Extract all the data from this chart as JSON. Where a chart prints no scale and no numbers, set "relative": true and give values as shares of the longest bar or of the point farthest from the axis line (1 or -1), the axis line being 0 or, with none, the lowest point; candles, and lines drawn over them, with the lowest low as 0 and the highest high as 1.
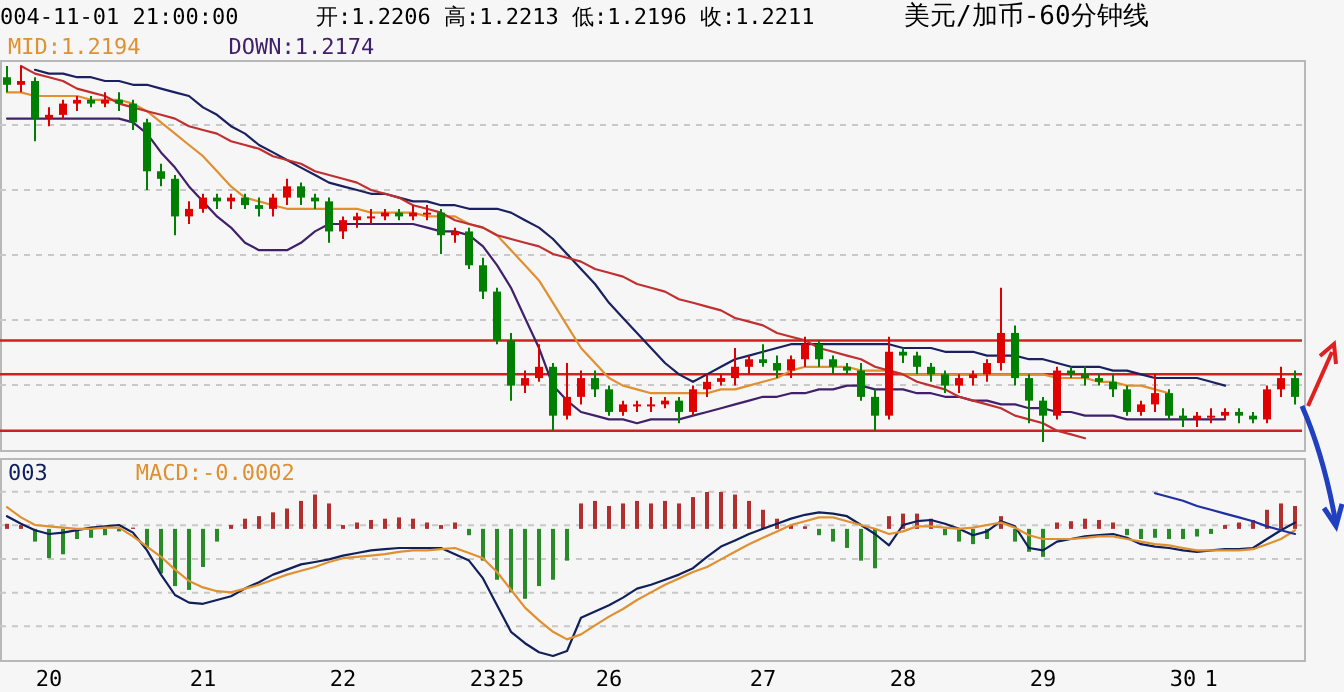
{
  "chart_data": [
    {
      "type": "candlestick",
      "title": "美元/加币-60分钟线",
      "subtitle": "开:1.2206 高:1.2213 低:1.2196 收:1.2211",
      "annotations": [
        "004-11-01 21:00:00"
      ],
      "relative": true,
      "tick_labels": false,
      "grid": "y",
      "legend": "top left",
      "categories": [
        null,
        null,
        null,
        null,
        null,
        null,
        null,
        null,
        null,
        null,
        null,
        null,
        null,
        null,
        null,
        null,
        null,
        null,
        null,
        null,
        null,
        null,
        null,
        null,
        null,
        null,
        null,
        null,
        null,
        null,
        null,
        null,
        null,
        null,
        null,
        null,
        null,
        null,
        null,
        null,
        null,
        null,
        null,
        null,
        null,
        null,
        null,
        null,
        null,
        null,
        null,
        null,
        null,
        null,
        null,
        null,
        null,
        null,
        null,
        null,
        null,
        null,
        null,
        null,
        null,
        null,
        null,
        null,
        null,
        null,
        null,
        null,
        null,
        null,
        null,
        null,
        null,
        null,
        null,
        null,
        null,
        null,
        null,
        null,
        null,
        null,
        null,
        null,
        null,
        null,
        null,
        null,
        null
      ],
      "ohlc": [
        [
          0.97,
          1.0,
          0.93,
          0.95
        ],
        [
          0.95,
          1.0,
          0.93,
          0.96
        ],
        [
          0.96,
          0.97,
          0.8,
          0.86
        ],
        [
          0.86,
          0.89,
          0.84,
          0.87
        ],
        [
          0.87,
          0.91,
          0.86,
          0.9
        ],
        [
          0.9,
          0.92,
          0.88,
          0.91
        ],
        [
          0.91,
          0.92,
          0.89,
          0.9
        ],
        [
          0.9,
          0.93,
          0.89,
          0.91
        ],
        [
          0.91,
          0.93,
          0.88,
          0.9
        ],
        [
          0.9,
          0.91,
          0.83,
          0.85
        ],
        [
          0.85,
          0.86,
          0.67,
          0.72
        ],
        [
          0.72,
          0.74,
          0.68,
          0.7
        ],
        [
          0.7,
          0.71,
          0.55,
          0.6
        ],
        [
          0.6,
          0.64,
          0.58,
          0.62
        ],
        [
          0.62,
          0.66,
          0.61,
          0.65
        ],
        [
          0.65,
          0.66,
          0.62,
          0.64
        ],
        [
          0.64,
          0.66,
          0.62,
          0.65
        ],
        [
          0.65,
          0.66,
          0.62,
          0.63
        ],
        [
          0.63,
          0.65,
          0.6,
          0.62
        ],
        [
          0.62,
          0.66,
          0.6,
          0.65
        ],
        [
          0.65,
          0.7,
          0.63,
          0.68
        ],
        [
          0.68,
          0.69,
          0.63,
          0.65
        ],
        [
          0.65,
          0.66,
          0.62,
          0.64
        ],
        [
          0.64,
          0.65,
          0.53,
          0.56
        ],
        [
          0.56,
          0.6,
          0.54,
          0.59
        ],
        [
          0.59,
          0.61,
          0.57,
          0.6
        ],
        [
          0.6,
          0.62,
          0.58,
          0.6
        ],
        [
          0.6,
          0.62,
          0.59,
          0.61
        ],
        [
          0.61,
          0.62,
          0.59,
          0.6
        ],
        [
          0.6,
          0.63,
          0.59,
          0.61
        ],
        [
          0.61,
          0.63,
          0.59,
          0.61
        ],
        [
          0.61,
          0.62,
          0.5,
          0.55
        ],
        [
          0.55,
          0.57,
          0.53,
          0.56
        ],
        [
          0.56,
          0.57,
          0.46,
          0.47
        ],
        [
          0.47,
          0.49,
          0.38,
          0.4
        ],
        [
          0.4,
          0.41,
          0.26,
          0.27
        ],
        [
          0.27,
          0.29,
          0.11,
          0.15
        ],
        [
          0.15,
          0.19,
          0.13,
          0.17
        ],
        [
          0.17,
          0.26,
          0.16,
          0.2
        ],
        [
          0.2,
          0.21,
          0.03,
          0.07
        ],
        [
          0.07,
          0.21,
          0.06,
          0.12
        ],
        [
          0.12,
          0.19,
          0.1,
          0.17
        ],
        [
          0.17,
          0.19,
          0.12,
          0.14
        ],
        [
          0.14,
          0.15,
          0.07,
          0.08
        ],
        [
          0.08,
          0.11,
          0.07,
          0.1
        ],
        [
          0.1,
          0.11,
          0.08,
          0.1
        ],
        [
          0.1,
          0.12,
          0.08,
          0.1
        ],
        [
          0.1,
          0.12,
          0.09,
          0.11
        ],
        [
          0.11,
          0.12,
          0.05,
          0.08
        ],
        [
          0.08,
          0.15,
          0.07,
          0.14
        ],
        [
          0.14,
          0.18,
          0.12,
          0.16
        ],
        [
          0.16,
          0.18,
          0.15,
          0.17
        ],
        [
          0.17,
          0.25,
          0.15,
          0.2
        ],
        [
          0.2,
          0.23,
          0.18,
          0.22
        ],
        [
          0.22,
          0.26,
          0.2,
          0.21
        ],
        [
          0.21,
          0.23,
          0.17,
          0.19
        ],
        [
          0.19,
          0.23,
          0.17,
          0.22
        ],
        [
          0.22,
          0.28,
          0.2,
          0.26
        ],
        [
          0.26,
          0.27,
          0.2,
          0.22
        ],
        [
          0.22,
          0.23,
          0.18,
          0.2
        ],
        [
          0.2,
          0.21,
          0.18,
          0.19
        ],
        [
          0.19,
          0.21,
          0.11,
          0.12
        ],
        [
          0.12,
          0.14,
          0.03,
          0.07
        ],
        [
          0.07,
          0.28,
          0.06,
          0.24
        ],
        [
          0.24,
          0.25,
          0.21,
          0.23
        ],
        [
          0.23,
          0.24,
          0.18,
          0.2
        ],
        [
          0.2,
          0.21,
          0.16,
          0.18
        ],
        [
          0.18,
          0.19,
          0.13,
          0.15
        ],
        [
          0.15,
          0.18,
          0.13,
          0.17
        ],
        [
          0.17,
          0.19,
          0.15,
          0.18
        ],
        [
          0.18,
          0.22,
          0.16,
          0.21
        ],
        [
          0.21,
          0.41,
          0.19,
          0.29
        ],
        [
          0.29,
          0.31,
          0.15,
          0.17
        ],
        [
          0.17,
          0.18,
          0.05,
          0.11
        ],
        [
          0.11,
          0.12,
          0.0,
          0.07
        ],
        [
          0.07,
          0.2,
          0.06,
          0.19
        ],
        [
          0.19,
          0.2,
          0.17,
          0.18
        ],
        [
          0.18,
          0.2,
          0.15,
          0.17
        ],
        [
          0.17,
          0.18,
          0.15,
          0.16
        ],
        [
          0.16,
          0.18,
          0.12,
          0.14
        ],
        [
          0.14,
          0.15,
          0.07,
          0.08
        ],
        [
          0.08,
          0.11,
          0.07,
          0.1
        ],
        [
          0.1,
          0.18,
          0.08,
          0.13
        ],
        [
          0.13,
          0.14,
          0.06,
          0.07
        ],
        [
          0.07,
          0.09,
          0.04,
          0.06
        ],
        [
          0.06,
          0.08,
          0.04,
          0.07
        ],
        [
          0.07,
          0.09,
          0.05,
          0.07
        ],
        [
          0.07,
          0.09,
          0.06,
          0.08
        ],
        [
          0.08,
          0.09,
          0.05,
          0.07
        ],
        [
          0.07,
          0.08,
          0.05,
          0.06
        ],
        [
          0.06,
          0.15,
          0.05,
          0.14
        ],
        [
          0.14,
          0.2,
          0.12,
          0.17
        ],
        [
          0.17,
          0.19,
          0.1,
          0.12
        ]
      ],
      "colors": [
        "#008000",
        "#e00000",
        "#008000",
        "#e00000",
        "#e00000",
        "#e00000",
        "#008000",
        "#e00000",
        "#008000",
        "#008000",
        "#008000",
        "#008000",
        "#008000",
        "#e00000",
        "#e00000",
        "#008000",
        "#e00000",
        "#008000",
        "#008000",
        "#e00000",
        "#e00000",
        "#008000",
        "#008000",
        "#008000",
        "#e00000",
        "#e00000",
        "#e00000",
        "#e00000",
        "#008000",
        "#e00000",
        "#e00000",
        "#008000",
        "#e00000",
        "#008000",
        "#008000",
        "#008000",
        "#008000",
        "#e00000",
        "#e00000",
        "#008000",
        "#e00000",
        "#e00000",
        "#008000",
        "#008000",
        "#e00000",
        "#e00000",
        "#e00000",
        "#e00000",
        "#008000",
        "#e00000",
        "#e00000",
        "#e00000",
        "#e00000",
        "#e00000",
        "#008000",
        "#008000",
        "#e00000",
        "#e00000",
        "#008000",
        "#008000",
        "#008000",
        "#008000",
        "#008000",
        "#e00000",
        "#008000",
        "#008000",
        "#008000",
        "#008000",
        "#e00000",
        "#e00000",
        "#e00000",
        "#e00000",
        "#008000",
        "#008000",
        "#008000",
        "#e00000",
        "#008000",
        "#008000",
        "#008000",
        "#008000",
        "#008000",
        "#e00000",
        "#e00000",
        "#008000",
        "#008000",
        "#e00000",
        "#e00000",
        "#e00000",
        "#008000",
        "#008000",
        "#e00000",
        "#e00000",
        "#008000"
      ],
      "series": [
        {
          "type": "line",
          "color": "#1a2060",
          "values": [
            null,
            null,
            0.99,
            0.98,
            0.98,
            0.97,
            0.97,
            0.96,
            0.96,
            0.95,
            0.95,
            0.94,
            0.93,
            0.92,
            0.89,
            0.87,
            0.84,
            0.82,
            0.79,
            0.77,
            0.75,
            0.73,
            0.71,
            0.69,
            0.68,
            0.67,
            0.66,
            0.66,
            0.65,
            0.64,
            0.64,
            0.63,
            0.63,
            0.62,
            0.62,
            0.62,
            0.61,
            0.59,
            0.57,
            0.54,
            0.5,
            0.46,
            0.42,
            0.37,
            0.33,
            0.29,
            0.25,
            0.21,
            0.18,
            0.16,
            0.18,
            0.2,
            0.22,
            0.23,
            0.24,
            0.25,
            0.26,
            0.26,
            0.26,
            0.26,
            0.26,
            0.26,
            0.26,
            0.26,
            0.25,
            0.25,
            0.25,
            0.24,
            0.24,
            0.24,
            0.23,
            0.23,
            0.23,
            0.22,
            0.22,
            0.21,
            0.2,
            0.2,
            0.2,
            0.19,
            0.19,
            0.18,
            0.17,
            0.17,
            0.17,
            0.17,
            0.16,
            0.15,
            null,
            null,
            null,
            null,
            null
          ]
        },
        {
          "type": "line",
          "name": "MID:1.2194",
          "color": "#e09030",
          "values": [
            0.93,
            0.93,
            0.92,
            0.92,
            0.92,
            0.92,
            0.91,
            0.91,
            0.91,
            0.9,
            0.88,
            0.85,
            0.82,
            0.79,
            0.76,
            0.72,
            0.68,
            0.65,
            0.64,
            0.63,
            0.62,
            0.62,
            0.62,
            0.62,
            0.62,
            0.62,
            0.61,
            0.61,
            0.61,
            0.61,
            0.6,
            0.6,
            0.6,
            0.58,
            0.57,
            0.55,
            0.51,
            0.47,
            0.43,
            0.37,
            0.31,
            0.25,
            0.21,
            0.17,
            0.15,
            0.14,
            0.13,
            0.13,
            0.13,
            0.13,
            0.13,
            0.14,
            0.14,
            0.15,
            0.16,
            0.17,
            0.19,
            0.2,
            0.2,
            0.2,
            0.2,
            0.19,
            0.19,
            0.19,
            0.18,
            0.18,
            0.18,
            0.18,
            0.18,
            0.18,
            0.18,
            0.18,
            0.18,
            0.18,
            0.18,
            0.17,
            0.17,
            0.17,
            0.16,
            0.16,
            0.15,
            0.15,
            0.14,
            0.13,
            null,
            null,
            null,
            null,
            null,
            null,
            null,
            null,
            null
          ]
        },
        {
          "type": "line",
          "name": "DOWN:1.2174",
          "color": "#40206a",
          "values": [
            0.86,
            0.86,
            0.86,
            0.86,
            0.86,
            0.86,
            0.86,
            0.86,
            0.86,
            0.85,
            0.82,
            0.77,
            0.73,
            0.68,
            0.64,
            0.6,
            0.57,
            0.53,
            0.51,
            0.51,
            0.51,
            0.53,
            0.56,
            0.58,
            0.58,
            0.58,
            0.58,
            0.58,
            0.58,
            0.58,
            0.57,
            0.56,
            0.56,
            0.55,
            0.52,
            0.47,
            0.41,
            0.33,
            0.25,
            0.15,
            0.11,
            0.08,
            0.07,
            0.06,
            0.06,
            0.05,
            0.06,
            0.06,
            0.06,
            0.07,
            0.08,
            0.09,
            0.1,
            0.11,
            0.12,
            0.12,
            0.13,
            0.13,
            0.14,
            0.14,
            0.15,
            0.15,
            0.14,
            0.14,
            0.14,
            0.13,
            0.13,
            0.12,
            0.12,
            0.11,
            0.11,
            0.1,
            0.1,
            0.09,
            0.09,
            0.08,
            0.08,
            0.07,
            0.07,
            0.07,
            0.06,
            0.06,
            0.06,
            0.06,
            0.06,
            0.06,
            0.06,
            0.06,
            null,
            null,
            null,
            null,
            null
          ]
        },
        {
          "type": "line",
          "color": "#c03030",
          "values": [
            null,
            1.0,
            0.98,
            0.97,
            0.96,
            0.94,
            0.93,
            0.92,
            0.9,
            0.89,
            0.88,
            0.87,
            0.86,
            0.84,
            0.83,
            0.82,
            0.8,
            0.79,
            0.78,
            0.76,
            0.75,
            0.74,
            0.72,
            0.71,
            0.7,
            0.69,
            0.67,
            0.66,
            0.65,
            0.63,
            0.62,
            0.61,
            0.59,
            0.58,
            0.57,
            0.55,
            0.54,
            0.53,
            0.52,
            0.5,
            0.49,
            0.48,
            0.46,
            0.45,
            0.44,
            0.42,
            0.41,
            0.4,
            0.38,
            0.37,
            0.36,
            0.35,
            0.33,
            0.32,
            0.31,
            0.29,
            0.28,
            0.27,
            0.25,
            0.24,
            0.23,
            0.22,
            0.2,
            0.19,
            0.18,
            0.16,
            0.15,
            0.14,
            0.12,
            0.11,
            0.1,
            0.09,
            0.07,
            0.06,
            0.05,
            0.03,
            0.02,
            0.01,
            null,
            null,
            null,
            null,
            null,
            null,
            null,
            null,
            null,
            null,
            null,
            null,
            null,
            null,
            null
          ]
        }
      ],
      "ref_lines": [
        {
          "axis": "y",
          "value": 0.27,
          "color": "#d02020"
        },
        {
          "axis": "y",
          "value": 0.18,
          "color": "#d02020"
        },
        {
          "axis": "y",
          "value": 0.03,
          "color": "#d02020"
        }
      ]
    },
    {
      "type": "bar",
      "relative": true,
      "tick_labels": "x",
      "grid": "y",
      "legend": "top left",
      "categories": [
        null,
        null,
        null,
        "20",
        null,
        null,
        null,
        null,
        null,
        null,
        null,
        null,
        null,
        null,
        "21",
        null,
        null,
        null,
        null,
        null,
        null,
        null,
        null,
        null,
        "22",
        null,
        null,
        null,
        null,
        null,
        null,
        null,
        null,
        null,
        "23",
        null,
        "25",
        null,
        null,
        null,
        null,
        null,
        null,
        "26",
        null,
        null,
        null,
        null,
        null,
        null,
        null,
        null,
        null,
        null,
        "27",
        null,
        null,
        null,
        null,
        null,
        null,
        null,
        null,
        null,
        "28",
        null,
        null,
        null,
        null,
        null,
        null,
        null,
        null,
        null,
        "29",
        null,
        null,
        null,
        null,
        null,
        null,
        null,
        null,
        null,
        "30",
        null,
        "1",
        null,
        null,
        null,
        null,
        null,
        null
      ],
      "series": [
        {
          "type": "bar",
          "color": "#b03030",
          "values": [
            0.04,
            0.03,
            null,
            null,
            null,
            null,
            null,
            null,
            null,
            0.01,
            null,
            null,
            null,
            null,
            null,
            null,
            0.03,
            0.08,
            0.1,
            0.13,
            0.16,
            0.22,
            0.27,
            0.2,
            0.03,
            0.05,
            0.07,
            0.08,
            0.09,
            0.08,
            0.05,
            0.03,
            0.05,
            null,
            null,
            null,
            null,
            null,
            null,
            null,
            null,
            0.2,
            0.22,
            0.18,
            0.2,
            0.22,
            0.2,
            0.22,
            0.2,
            0.25,
            0.29,
            0.29,
            0.27,
            0.22,
            0.15,
            0.08,
            0.03,
            0.02,
            null,
            null,
            null,
            null,
            null,
            0.1,
            0.12,
            0.12,
            0.08,
            null,
            null,
            null,
            null,
            0.1,
            null,
            null,
            null,
            0.05,
            0.06,
            0.08,
            0.07,
            0.05,
            null,
            null,
            null,
            null,
            null,
            null,
            null,
            0.03,
            0.05,
            0.07,
            0.15,
            0.2,
            0.18
          ]
        },
        {
          "type": "bar",
          "color": "#2a8a2a",
          "values": [
            null,
            null,
            -0.1,
            -0.23,
            -0.2,
            -0.08,
            -0.07,
            -0.05,
            -0.02,
            null,
            -0.15,
            -0.35,
            -0.45,
            -0.48,
            -0.3,
            -0.1,
            null,
            null,
            null,
            null,
            null,
            null,
            null,
            null,
            null,
            null,
            null,
            null,
            null,
            null,
            null,
            null,
            null,
            -0.05,
            -0.25,
            -0.4,
            -0.5,
            -0.55,
            -0.45,
            -0.4,
            -0.25,
            null,
            null,
            null,
            null,
            null,
            null,
            null,
            null,
            null,
            null,
            null,
            null,
            null,
            null,
            null,
            null,
            null,
            -0.05,
            -0.1,
            -0.15,
            -0.25,
            -0.31,
            null,
            null,
            null,
            null,
            -0.05,
            -0.1,
            -0.12,
            -0.08,
            null,
            -0.1,
            -0.18,
            -0.22,
            null,
            null,
            null,
            null,
            null,
            -0.05,
            -0.08,
            -0.07,
            -0.08,
            -0.08,
            -0.06,
            -0.04,
            null,
            null,
            null,
            null,
            null,
            null
          ]
        },
        {
          "type": "line",
          "name": "003",
          "color": "#10205a",
          "values": [
            0.1,
            0.04,
            -0.01,
            -0.04,
            -0.03,
            -0.01,
            0.01,
            0.02,
            0.03,
            -0.03,
            -0.17,
            -0.36,
            -0.52,
            -0.58,
            -0.59,
            -0.56,
            -0.53,
            -0.47,
            -0.42,
            -0.36,
            -0.32,
            -0.28,
            -0.26,
            -0.24,
            -0.21,
            -0.19,
            -0.17,
            -0.16,
            -0.15,
            -0.15,
            -0.15,
            -0.15,
            -0.2,
            -0.25,
            -0.39,
            -0.6,
            -0.81,
            -0.9,
            -0.97,
            -1.0,
            -0.96,
            -0.7,
            -0.65,
            -0.6,
            -0.54,
            -0.47,
            -0.44,
            -0.4,
            -0.36,
            -0.31,
            -0.22,
            -0.14,
            -0.09,
            -0.04,
            0,
            0.04,
            0.08,
            0.11,
            0.13,
            0.12,
            0.1,
            0.03,
            -0.04,
            -0.13,
            0.03,
            0.06,
            0.07,
            0.04,
            0,
            -0.05,
            -0.02,
            0.06,
            0.02,
            -0.15,
            -0.17,
            -0.1,
            -0.08,
            -0.06,
            -0.05,
            -0.04,
            -0.07,
            -0.12,
            -0.14,
            -0.15,
            -0.17,
            -0.18,
            -0.17,
            -0.16,
            -0.16,
            -0.15,
            -0.08,
            -0.01,
            0.05
          ]
        },
        {
          "type": "line",
          "name": "MACD:-0.0002",
          "color": "#e09030",
          "values": [
            0.17,
            0.09,
            0.03,
            0.02,
            0.01,
            0,
            0,
            0.01,
            0.01,
            -0.06,
            -0.14,
            -0.22,
            -0.32,
            -0.41,
            -0.46,
            -0.49,
            -0.5,
            -0.47,
            -0.44,
            -0.4,
            -0.36,
            -0.33,
            -0.3,
            -0.26,
            -0.23,
            -0.22,
            -0.21,
            -0.2,
            -0.18,
            -0.17,
            -0.17,
            -0.16,
            -0.15,
            -0.19,
            -0.23,
            -0.34,
            -0.48,
            -0.62,
            -0.72,
            -0.81,
            -0.87,
            -0.83,
            -0.76,
            -0.69,
            -0.63,
            -0.56,
            -0.5,
            -0.44,
            -0.39,
            -0.34,
            -0.3,
            -0.24,
            -0.18,
            -0.12,
            -0.07,
            -0.02,
            0.03,
            0.06,
            0.09,
            0.09,
            0.06,
            0.03,
            0,
            -0.04,
            -0.02,
            0.02,
            0.02,
            0.01,
            0,
            0.01,
            0.03,
            0.05,
            0.01,
            -0.05,
            -0.08,
            -0.08,
            -0.08,
            -0.07,
            -0.06,
            -0.06,
            -0.08,
            -0.1,
            -0.12,
            -0.13,
            -0.15,
            -0.17,
            -0.17,
            -0.17,
            -0.17,
            -0.16,
            -0.12,
            -0.08,
            -0.01
          ]
        },
        {
          "type": "line",
          "color": "#2030a0",
          "values": [
            null,
            null,
            null,
            null,
            null,
            null,
            null,
            null,
            null,
            null,
            null,
            null,
            null,
            null,
            null,
            null,
            null,
            null,
            null,
            null,
            null,
            null,
            null,
            null,
            null,
            null,
            null,
            null,
            null,
            null,
            null,
            null,
            null,
            null,
            null,
            null,
            null,
            null,
            null,
            null,
            null,
            null,
            null,
            null,
            null,
            null,
            null,
            null,
            null,
            null,
            null,
            null,
            null,
            null,
            null,
            null,
            null,
            null,
            null,
            null,
            null,
            null,
            null,
            null,
            null,
            null,
            null,
            null,
            null,
            null,
            null,
            null,
            null,
            null,
            null,
            null,
            null,
            null,
            null,
            null,
            null,
            null,
            0.28,
            0.25,
            0.22,
            0.18,
            0.15,
            0.12,
            0.09,
            0.06,
            0.02,
            -0.01,
            -0.04
          ]
        }
      ]
    }
  ]
}
